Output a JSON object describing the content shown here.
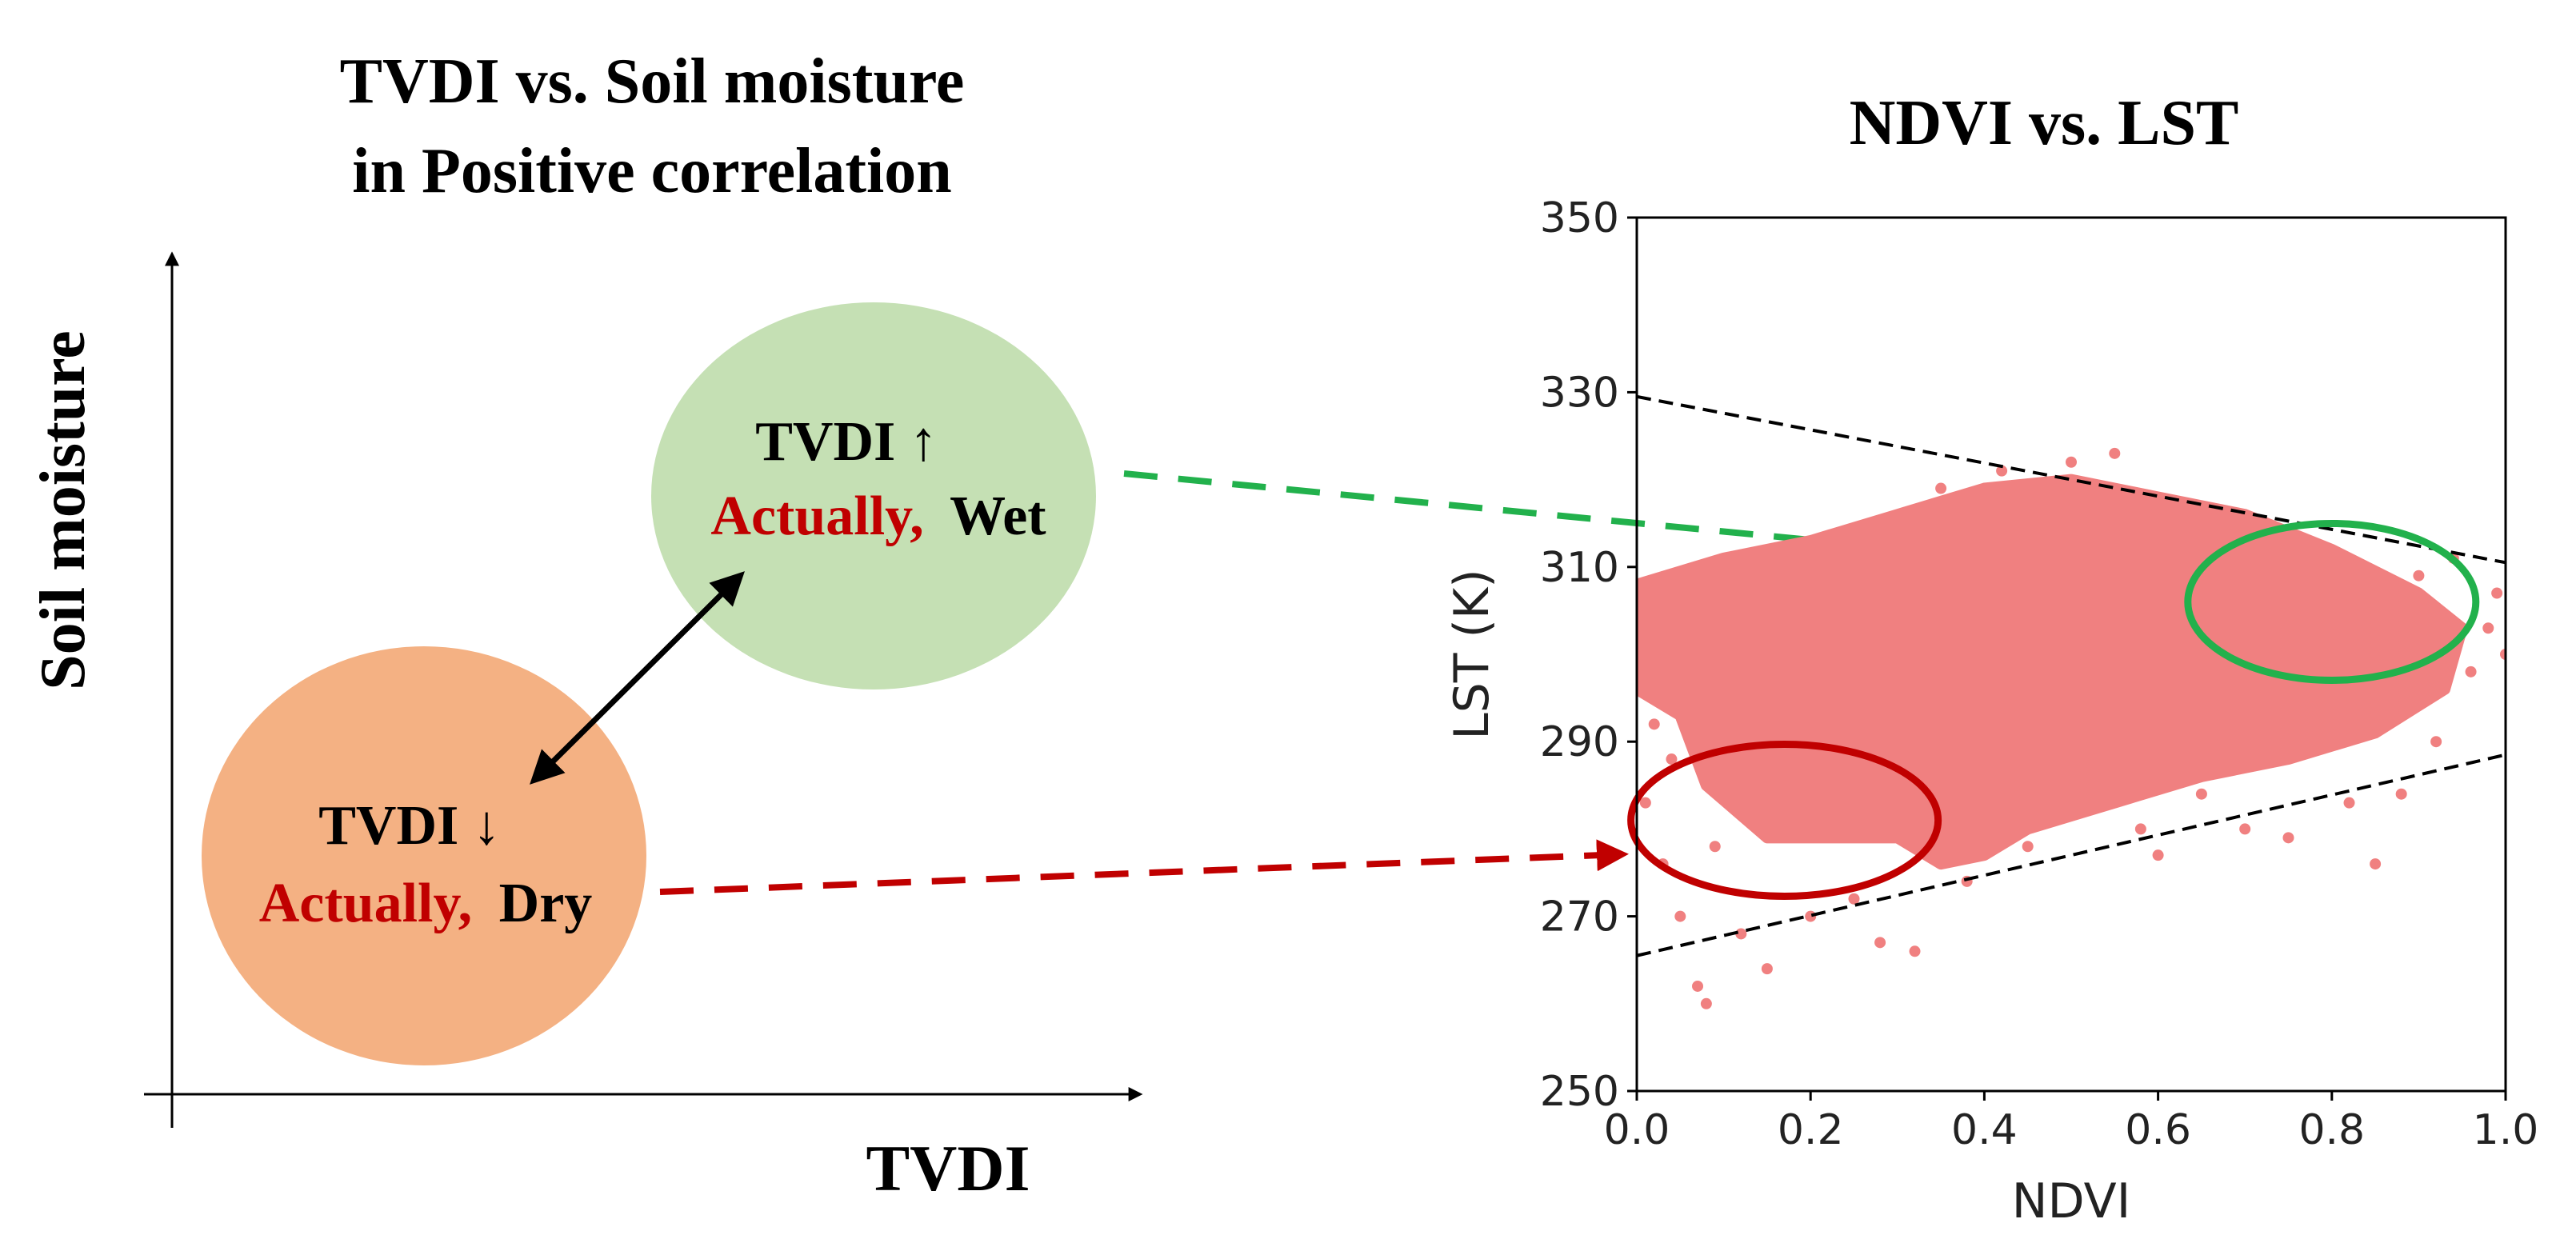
{
  "left_panel": {
    "title_line1": "TVDI vs. Soil moisture",
    "title_line2": "in Positive correlation",
    "y_axis_label": "Soil moisture",
    "x_axis_label": "TVDI",
    "wet_circle": {
      "line1": "TVDI ↑",
      "highlight": "Actually,",
      "word": "Wet",
      "fill": "#c5e0b4"
    },
    "dry_circle": {
      "line1": "TVDI ↓",
      "highlight": "Actually,",
      "word": "Dry",
      "fill": "#f4b183"
    },
    "highlight_color": "#c00000"
  },
  "chart_data": {
    "type": "scatter",
    "title": "NDVI vs. LST",
    "xlabel": "NDVI",
    "ylabel": "LST (K)",
    "xlim": [
      0.0,
      1.0
    ],
    "ylim": [
      250,
      350
    ],
    "xticks": [
      "0.0",
      "0.2",
      "0.4",
      "0.6",
      "0.8",
      "1.0"
    ],
    "xtick_values": [
      0.0,
      0.2,
      0.4,
      0.6,
      0.8,
      1.0
    ],
    "yticks": [
      "250",
      "270",
      "290",
      "310",
      "330",
      "350"
    ],
    "ytick_values": [
      250,
      270,
      290,
      310,
      330,
      350
    ],
    "point_color": "#f08080",
    "dense_region": [
      [
        0.0,
        308
      ],
      [
        0.1,
        311
      ],
      [
        0.2,
        313
      ],
      [
        0.3,
        316
      ],
      [
        0.4,
        319
      ],
      [
        0.5,
        320
      ],
      [
        0.6,
        318
      ],
      [
        0.7,
        316
      ],
      [
        0.8,
        312
      ],
      [
        0.9,
        307
      ],
      [
        0.95,
        303
      ],
      [
        0.93,
        296
      ],
      [
        0.85,
        291
      ],
      [
        0.75,
        288
      ],
      [
        0.65,
        286
      ],
      [
        0.55,
        283
      ],
      [
        0.45,
        280
      ],
      [
        0.4,
        277
      ],
      [
        0.35,
        276
      ],
      [
        0.3,
        279
      ],
      [
        0.15,
        279
      ],
      [
        0.08,
        285
      ],
      [
        0.05,
        293
      ],
      [
        0.0,
        296
      ]
    ],
    "sample_points": [
      [
        0.02,
        292
      ],
      [
        0.01,
        283
      ],
      [
        0.03,
        276
      ],
      [
        0.05,
        270
      ],
      [
        0.07,
        262
      ],
      [
        0.09,
        278
      ],
      [
        0.12,
        268
      ],
      [
        0.15,
        264
      ],
      [
        0.2,
        270
      ],
      [
        0.25,
        272
      ],
      [
        0.28,
        267
      ],
      [
        0.32,
        266
      ],
      [
        0.38,
        274
      ],
      [
        0.45,
        278
      ],
      [
        0.5,
        322
      ],
      [
        0.55,
        323
      ],
      [
        0.58,
        280
      ],
      [
        0.65,
        284
      ],
      [
        0.7,
        280
      ],
      [
        0.75,
        279
      ],
      [
        0.85,
        276
      ],
      [
        0.88,
        284
      ],
      [
        0.92,
        290
      ],
      [
        0.96,
        298
      ],
      [
        0.98,
        303
      ],
      [
        0.99,
        307
      ],
      [
        1.0,
        300
      ],
      [
        0.9,
        309
      ],
      [
        0.42,
        321
      ],
      [
        0.35,
        319
      ],
      [
        0.08,
        260
      ],
      [
        0.04,
        288
      ],
      [
        0.6,
        277
      ],
      [
        0.82,
        283
      ],
      [
        0.94,
        311
      ]
    ],
    "dry_edge": {
      "x": [
        0.0,
        1.0
      ],
      "y": [
        329.5,
        310.5
      ]
    },
    "wet_edge": {
      "x": [
        0.0,
        1.0
      ],
      "y": [
        265.5,
        288.5
      ]
    },
    "wet_ellipse": {
      "center": [
        0.8,
        306
      ],
      "color": "#22b14c"
    },
    "dry_ellipse": {
      "center": [
        0.17,
        281
      ],
      "color": "#c00000"
    }
  },
  "arrows": {
    "green_color": "#22b14c",
    "red_color": "#c00000"
  }
}
